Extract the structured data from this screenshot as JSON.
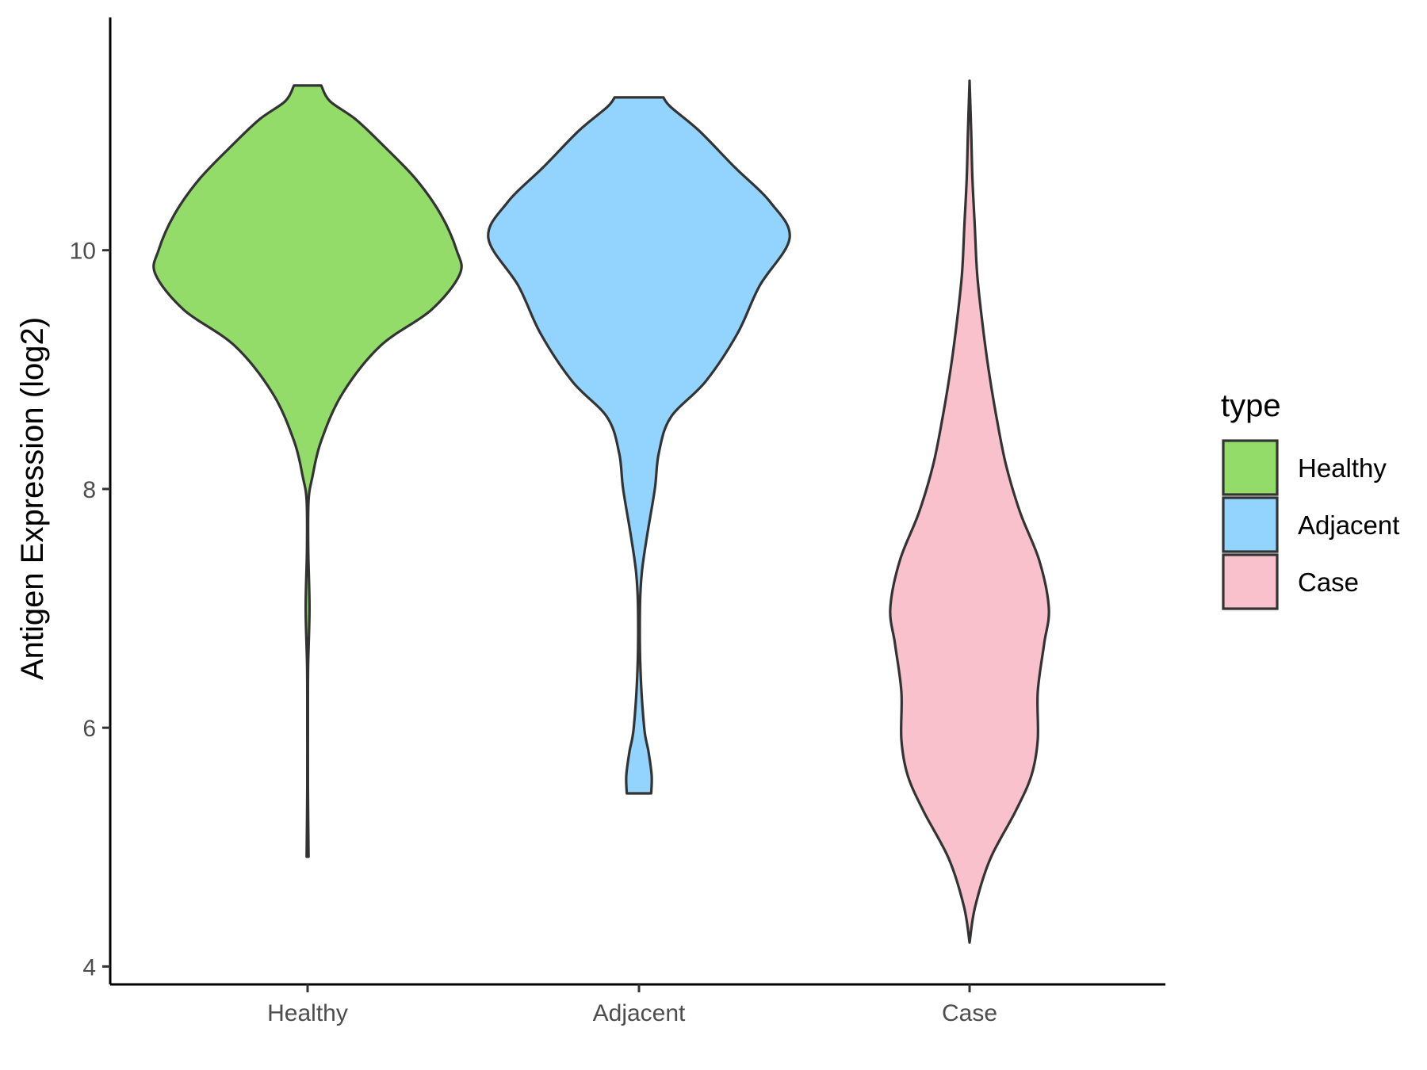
{
  "chart_data": {
    "type": "violin",
    "title": "",
    "xlabel": "",
    "ylabel": "Antigen Expression (log2)",
    "ylim": [
      3.85,
      11.95
    ],
    "yticks": [
      4,
      6,
      8,
      10
    ],
    "categories": [
      "Healthy",
      "Adjacent",
      "Case"
    ],
    "grid": false,
    "legend": {
      "title": "type",
      "position": "right",
      "entries": [
        "Healthy",
        "Adjacent",
        "Case"
      ]
    },
    "series": [
      {
        "name": "Healthy",
        "color": "#93dc69",
        "min": 4.92,
        "max": 11.38,
        "profile": [
          [
            4.92,
            0.006
          ],
          [
            5.5,
            0.002
          ],
          [
            6.0,
            0.002
          ],
          [
            6.5,
            0.003
          ],
          [
            7.0,
            0.012
          ],
          [
            7.5,
            0.004
          ],
          [
            7.9,
            0.006
          ],
          [
            8.1,
            0.03
          ],
          [
            8.4,
            0.085
          ],
          [
            8.8,
            0.22
          ],
          [
            9.2,
            0.46
          ],
          [
            9.5,
            0.78
          ],
          [
            9.8,
            0.96
          ],
          [
            10.0,
            0.94
          ],
          [
            10.3,
            0.84
          ],
          [
            10.6,
            0.68
          ],
          [
            10.9,
            0.46
          ],
          [
            11.1,
            0.3
          ],
          [
            11.25,
            0.14
          ],
          [
            11.38,
            0.086
          ]
        ]
      },
      {
        "name": "Adjacent",
        "color": "#93d4ff",
        "min": 5.45,
        "max": 11.28,
        "profile": [
          [
            5.45,
            0.077
          ],
          [
            5.6,
            0.08
          ],
          [
            5.8,
            0.06
          ],
          [
            6.0,
            0.033
          ],
          [
            6.5,
            0.009
          ],
          [
            7.0,
            0.006
          ],
          [
            7.3,
            0.018
          ],
          [
            7.6,
            0.05
          ],
          [
            8.0,
            0.1
          ],
          [
            8.3,
            0.125
          ],
          [
            8.6,
            0.2
          ],
          [
            8.9,
            0.42
          ],
          [
            9.3,
            0.62
          ],
          [
            9.7,
            0.76
          ],
          [
            10.1,
            0.95
          ],
          [
            10.4,
            0.83
          ],
          [
            10.7,
            0.6
          ],
          [
            11.0,
            0.38
          ],
          [
            11.2,
            0.2
          ],
          [
            11.28,
            0.154
          ]
        ]
      },
      {
        "name": "Case",
        "color": "#f8c1cc",
        "min": 4.2,
        "max": 11.42,
        "profile": [
          [
            4.2,
            0.0
          ],
          [
            4.5,
            0.035
          ],
          [
            4.9,
            0.13
          ],
          [
            5.3,
            0.29
          ],
          [
            5.6,
            0.39
          ],
          [
            5.9,
            0.43
          ],
          [
            6.3,
            0.43
          ],
          [
            6.7,
            0.47
          ],
          [
            7.0,
            0.5
          ],
          [
            7.4,
            0.44
          ],
          [
            7.8,
            0.32
          ],
          [
            8.2,
            0.23
          ],
          [
            8.6,
            0.17
          ],
          [
            9.0,
            0.12
          ],
          [
            9.4,
            0.08
          ],
          [
            9.8,
            0.048
          ],
          [
            10.2,
            0.033
          ],
          [
            10.6,
            0.018
          ],
          [
            11.0,
            0.01
          ],
          [
            11.42,
            0.0
          ]
        ]
      }
    ]
  }
}
